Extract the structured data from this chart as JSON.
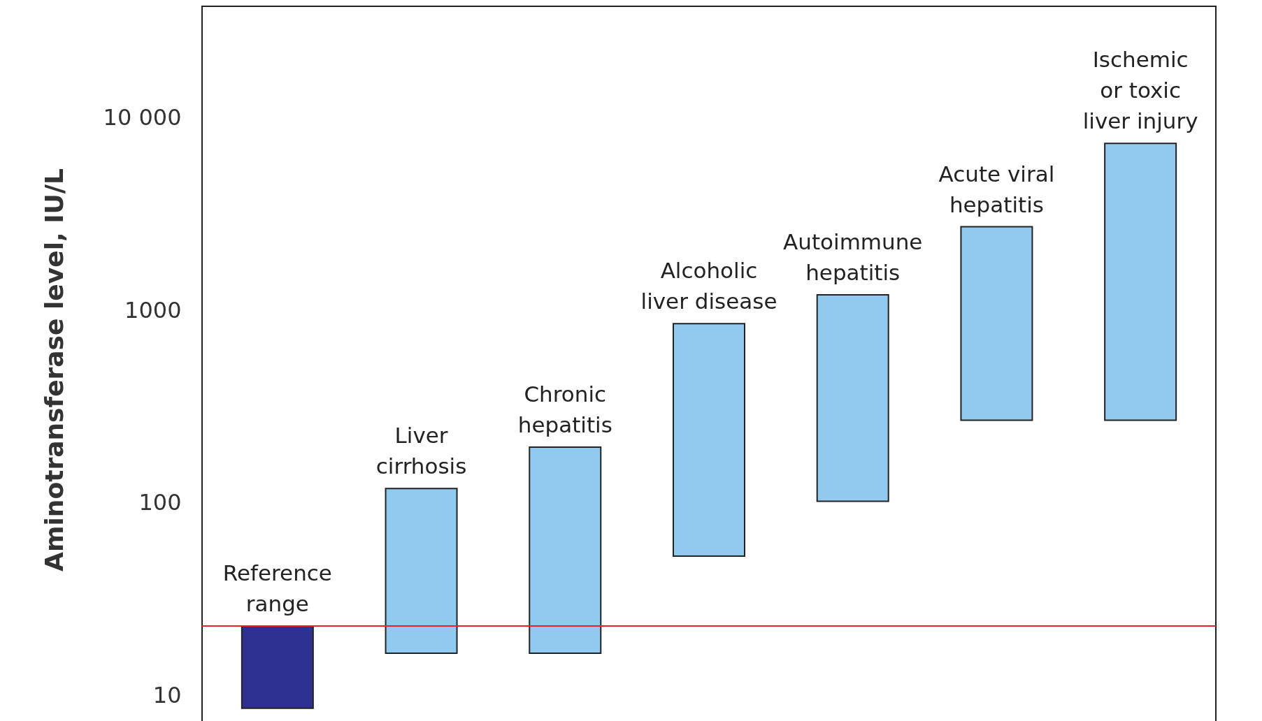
{
  "chart_data": {
    "type": "bar",
    "ylabel": "Aminotransferase level, IU/L",
    "categories": [
      "Reference\nrange",
      "Liver\ncirrhosis",
      "Chronic\nhepatitis",
      "Alcoholic\nliver disease",
      "Autoimmune\nhepatitis",
      "Acute viral\nhepatitis",
      "Ischemic\nor toxic\nliver injury"
    ],
    "base": [
      8.6,
      16.6,
      16.6,
      53,
      102,
      269,
      269
    ],
    "values": [
      14.4,
      102.4,
      178.4,
      802,
      1103,
      2451,
      7111
    ],
    "colors": [
      "#2e3192",
      "#92c9ee",
      "#92c9ee",
      "#92c9ee",
      "#92c9ee",
      "#92c9ee",
      "#92c9ee"
    ],
    "log": true,
    "ylim": [
      6.4,
      38000
    ],
    "yticks": [
      10,
      100,
      1000,
      {
        "value": 10000,
        "label": "10 000"
      }
    ],
    "ref_lines": [
      {
        "axis": "y",
        "value": 23,
        "color": "#e8202a"
      }
    ],
    "grid": false
  }
}
